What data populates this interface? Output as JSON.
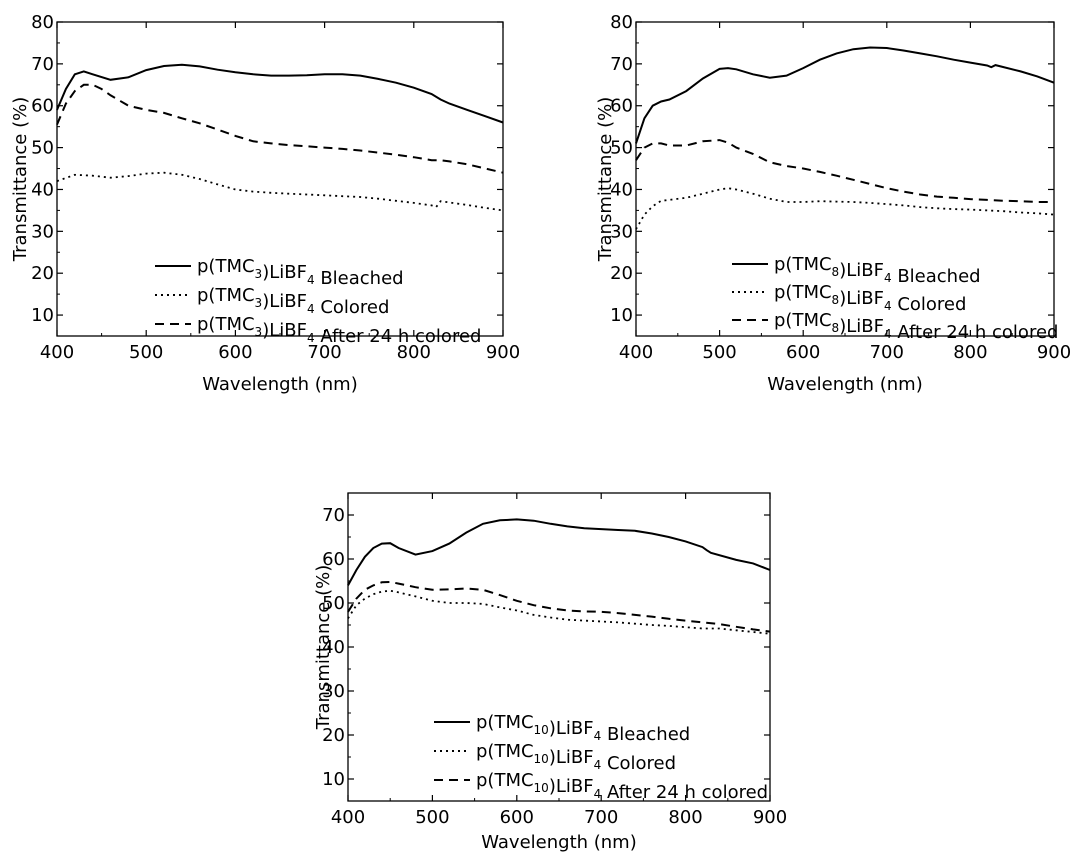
{
  "chart_data": [
    {
      "type": "line",
      "xlabel": "Wavelength (nm)",
      "ylabel": "Transmittance (%)",
      "xlim": [
        400,
        900
      ],
      "ylim": [
        5,
        80
      ],
      "xticks": [
        "400",
        "500",
        "600",
        "700",
        "800",
        "900"
      ],
      "yticks": [
        "10",
        "20",
        "30",
        "40",
        "50",
        "60",
        "70",
        "80"
      ],
      "legend_position": "bottom-right",
      "legend": [
        {
          "pre": "p(TMC",
          "sub1": "3",
          "mid": ")LiBF",
          "sub2": "4",
          "post": " Bleached"
        },
        {
          "pre": "p(TMC",
          "sub1": "3",
          "mid": ")LiBF",
          "sub2": "4",
          "post": " Colored"
        },
        {
          "pre": "p(TMC",
          "sub1": "3",
          "mid": ")LiBF",
          "sub2": "4",
          "post": " After 24 h colored"
        }
      ],
      "series": [
        {
          "style": "solid",
          "x": [
            400,
            410,
            420,
            430,
            440,
            460,
            480,
            500,
            520,
            540,
            560,
            580,
            600,
            620,
            640,
            660,
            680,
            700,
            720,
            740,
            760,
            780,
            800,
            820,
            830,
            840,
            860,
            880,
            900
          ],
          "y": [
            59,
            64,
            67.5,
            68.2,
            67.5,
            66.2,
            66.8,
            68.5,
            69.5,
            69.8,
            69.4,
            68.6,
            68,
            67.5,
            67.2,
            67.2,
            67.3,
            67.5,
            67.5,
            67.2,
            66.4,
            65.5,
            64.3,
            62.8,
            61.5,
            60.5,
            59,
            57.5,
            56
          ]
        },
        {
          "style": "dotted",
          "x": [
            400,
            420,
            440,
            460,
            480,
            500,
            520,
            540,
            560,
            580,
            600,
            620,
            640,
            660,
            680,
            700,
            720,
            740,
            760,
            780,
            800,
            820,
            825,
            830,
            860,
            880,
            900
          ],
          "y": [
            42,
            43.5,
            43.3,
            42.8,
            43.2,
            43.8,
            44,
            43.5,
            42.5,
            41.2,
            40,
            39.5,
            39.2,
            39,
            38.8,
            38.6,
            38.4,
            38.2,
            37.8,
            37.3,
            36.8,
            36.2,
            35.8,
            37.2,
            36.3,
            35.6,
            35
          ]
        },
        {
          "style": "dashed",
          "x": [
            400,
            410,
            420,
            430,
            440,
            450,
            460,
            480,
            500,
            520,
            540,
            560,
            580,
            600,
            620,
            640,
            660,
            680,
            700,
            720,
            740,
            760,
            780,
            800,
            820,
            830,
            840,
            860,
            880,
            900
          ],
          "y": [
            55.5,
            60.5,
            63.5,
            65,
            65,
            64,
            62.5,
            60,
            59,
            58.3,
            57,
            55.8,
            54.3,
            52.8,
            51.5,
            51,
            50.6,
            50.3,
            50,
            49.7,
            49.3,
            48.8,
            48.3,
            47.7,
            47,
            47,
            46.7,
            46,
            45,
            44
          ]
        }
      ]
    },
    {
      "type": "line",
      "xlabel": "Wavelength (nm)",
      "ylabel": "Transmittance (%)",
      "xlim": [
        400,
        900
      ],
      "ylim": [
        5,
        80
      ],
      "xticks": [
        "400",
        "500",
        "600",
        "700",
        "800",
        "900"
      ],
      "yticks": [
        "10",
        "20",
        "30",
        "40",
        "50",
        "60",
        "70",
        "80"
      ],
      "legend_position": "bottom-right",
      "legend": [
        {
          "pre": "p(TMC",
          "sub1": "8",
          "mid": ")LiBF",
          "sub2": "4",
          "post": " Bleached"
        },
        {
          "pre": "p(TMC",
          "sub1": "8",
          "mid": ")LiBF",
          "sub2": "4",
          "post": " Colored"
        },
        {
          "pre": "p(TMC",
          "sub1": "8",
          "mid": ")LiBF",
          "sub2": "4",
          "post": " After 24 h colored"
        }
      ],
      "series": [
        {
          "style": "solid",
          "x": [
            400,
            410,
            420,
            430,
            440,
            460,
            480,
            500,
            510,
            520,
            540,
            560,
            580,
            600,
            620,
            640,
            660,
            680,
            700,
            720,
            740,
            760,
            780,
            800,
            820,
            825,
            830,
            860,
            880,
            900
          ],
          "y": [
            51,
            57,
            60,
            61,
            61.5,
            63.5,
            66.5,
            68.8,
            69,
            68.7,
            67.5,
            66.7,
            67.2,
            69,
            71,
            72.5,
            73.5,
            73.9,
            73.8,
            73.2,
            72.5,
            71.8,
            71,
            70.3,
            69.6,
            69.2,
            69.7,
            68.2,
            67,
            65.5
          ]
        },
        {
          "style": "dotted",
          "x": [
            400,
            410,
            420,
            430,
            440,
            460,
            480,
            500,
            510,
            520,
            540,
            560,
            580,
            600,
            620,
            640,
            660,
            680,
            700,
            720,
            740,
            760,
            780,
            800,
            820,
            840,
            860,
            880,
            900
          ],
          "y": [
            30.5,
            34,
            36,
            37.3,
            37.5,
            38,
            39,
            40,
            40.3,
            40,
            39,
            37.8,
            37,
            37,
            37.2,
            37.1,
            37,
            36.8,
            36.5,
            36.2,
            35.8,
            35.5,
            35.3,
            35.2,
            35,
            34.8,
            34.5,
            34.3,
            34
          ]
        },
        {
          "style": "dashed",
          "x": [
            400,
            410,
            420,
            430,
            440,
            460,
            480,
            500,
            510,
            520,
            540,
            560,
            580,
            600,
            620,
            640,
            660,
            680,
            700,
            720,
            740,
            760,
            780,
            800,
            820,
            840,
            860,
            880,
            900
          ],
          "y": [
            47,
            50,
            51,
            51,
            50.5,
            50.5,
            51.5,
            51.8,
            51.2,
            50,
            48.5,
            46.5,
            45.6,
            45,
            44.2,
            43.3,
            42.3,
            41.3,
            40.3,
            39.5,
            38.8,
            38.3,
            38,
            37.7,
            37.5,
            37.3,
            37.2,
            37,
            37
          ]
        }
      ]
    },
    {
      "type": "line",
      "xlabel": "Wavelength (nm)",
      "ylabel": "Transmittance (%)",
      "xlim": [
        400,
        900
      ],
      "ylim": [
        5,
        75
      ],
      "xticks": [
        "400",
        "500",
        "600",
        "700",
        "800",
        "900"
      ],
      "yticks": [
        "10",
        "20",
        "30",
        "40",
        "50",
        "60",
        "70"
      ],
      "legend_position": "bottom-right",
      "legend": [
        {
          "pre": "p(TMC",
          "sub1": "10",
          "mid": ")LiBF",
          "sub2": "4",
          "post": " Bleached"
        },
        {
          "pre": "p(TMC",
          "sub1": "10",
          "mid": ")LiBF",
          "sub2": "4",
          "post": " Colored"
        },
        {
          "pre": "p(TMC",
          "sub1": "10",
          "mid": ")LiBF",
          "sub2": "4",
          "post": " After 24 h colored"
        }
      ],
      "series": [
        {
          "style": "solid",
          "x": [
            400,
            410,
            420,
            430,
            440,
            450,
            460,
            480,
            500,
            520,
            540,
            560,
            580,
            600,
            620,
            640,
            660,
            680,
            700,
            720,
            740,
            760,
            780,
            800,
            820,
            825,
            830,
            860,
            880,
            900
          ],
          "y": [
            54,
            57.5,
            60.5,
            62.5,
            63.5,
            63.6,
            62.5,
            61,
            61.8,
            63.5,
            66,
            68,
            68.8,
            69,
            68.7,
            68,
            67.4,
            67,
            66.8,
            66.6,
            66.4,
            65.8,
            65,
            64,
            62.7,
            62,
            61.4,
            59.8,
            59,
            57.5
          ]
        },
        {
          "style": "dotted",
          "x": [
            400,
            410,
            420,
            430,
            440,
            450,
            460,
            480,
            500,
            520,
            540,
            560,
            580,
            600,
            620,
            640,
            660,
            680,
            700,
            720,
            740,
            760,
            780,
            800,
            820,
            840,
            860,
            880,
            900
          ],
          "y": [
            46.5,
            49.5,
            51,
            52,
            52.6,
            52.8,
            52.4,
            51.5,
            50.5,
            50,
            50,
            49.8,
            49,
            48.3,
            47.3,
            46.7,
            46.2,
            46,
            45.8,
            45.6,
            45.3,
            45,
            44.8,
            44.5,
            44.2,
            44.2,
            43.8,
            43.4,
            43
          ]
        },
        {
          "style": "dashed",
          "x": [
            400,
            410,
            420,
            430,
            440,
            450,
            460,
            480,
            500,
            520,
            540,
            560,
            580,
            600,
            620,
            640,
            660,
            680,
            700,
            720,
            740,
            760,
            780,
            800,
            820,
            840,
            860,
            880,
            900
          ],
          "y": [
            48,
            51,
            53,
            54,
            54.7,
            54.8,
            54.4,
            53.6,
            53,
            53.1,
            53.3,
            53,
            51.8,
            50.5,
            49.5,
            48.8,
            48.3,
            48.1,
            48,
            47.7,
            47.3,
            46.9,
            46.4,
            46,
            45.6,
            45.2,
            44.6,
            44,
            43.5
          ]
        }
      ]
    }
  ]
}
